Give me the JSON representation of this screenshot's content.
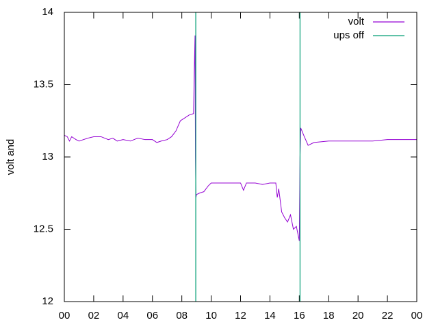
{
  "chart_data": {
    "type": "line",
    "y_label": "volt and",
    "xlim": [
      0,
      24
    ],
    "xticks": [
      {
        "value": 0,
        "label": "00"
      },
      {
        "value": 2,
        "label": "02"
      },
      {
        "value": 4,
        "label": "04"
      },
      {
        "value": 6,
        "label": "06"
      },
      {
        "value": 8,
        "label": "08"
      },
      10,
      12,
      14,
      16,
      18,
      20,
      22,
      {
        "value": 24,
        "label": "00"
      }
    ],
    "ylim": [
      12,
      14
    ],
    "yticks": [
      12,
      12.5,
      13,
      13.5,
      14
    ],
    "legend": "top-right",
    "series": [
      {
        "name": "volt",
        "color": "#9400d3",
        "style": "line",
        "x": [
          0,
          0.2,
          0.35,
          0.5,
          0.8,
          1,
          1.3,
          1.6,
          2,
          2.5,
          3,
          3.3,
          3.6,
          4,
          4.5,
          5,
          5.5,
          6,
          6.3,
          6.6,
          7,
          7.3,
          7.6,
          7.9,
          8.2,
          8.5,
          8.8,
          8.85,
          8.9,
          8.93,
          8.96,
          9.0,
          9.2,
          9.5,
          9.8,
          10,
          11,
          12,
          12.2,
          12.4,
          13,
          13.5,
          14,
          14.4,
          14.5,
          14.6,
          14.8,
          15,
          15.2,
          15.4,
          15.6,
          15.8,
          16,
          16.05,
          16.1,
          16.3,
          16.6,
          17,
          18,
          19,
          20,
          21,
          22,
          23,
          24
        ],
        "values": [
          13.15,
          13.14,
          13.11,
          13.14,
          13.12,
          13.11,
          13.12,
          13.13,
          13.14,
          13.14,
          13.12,
          13.13,
          13.11,
          13.12,
          13.11,
          13.13,
          13.12,
          13.12,
          13.1,
          13.11,
          13.12,
          13.14,
          13.18,
          13.25,
          13.27,
          13.29,
          13.3,
          13.6,
          13.84,
          13.0,
          12.72,
          12.74,
          12.75,
          12.76,
          12.8,
          12.82,
          12.82,
          12.82,
          12.77,
          12.82,
          12.82,
          12.81,
          12.82,
          12.82,
          12.72,
          12.78,
          12.62,
          12.58,
          12.55,
          12.6,
          12.5,
          12.52,
          12.42,
          13.0,
          13.2,
          13.15,
          13.08,
          13.1,
          13.11,
          13.11,
          13.11,
          13.11,
          13.12,
          13.12,
          13.12
        ]
      },
      {
        "name": "ups off",
        "color": "#009e73",
        "style": "impulse",
        "x": [
          8.95,
          16.05
        ],
        "values": [
          14,
          14
        ]
      }
    ]
  }
}
